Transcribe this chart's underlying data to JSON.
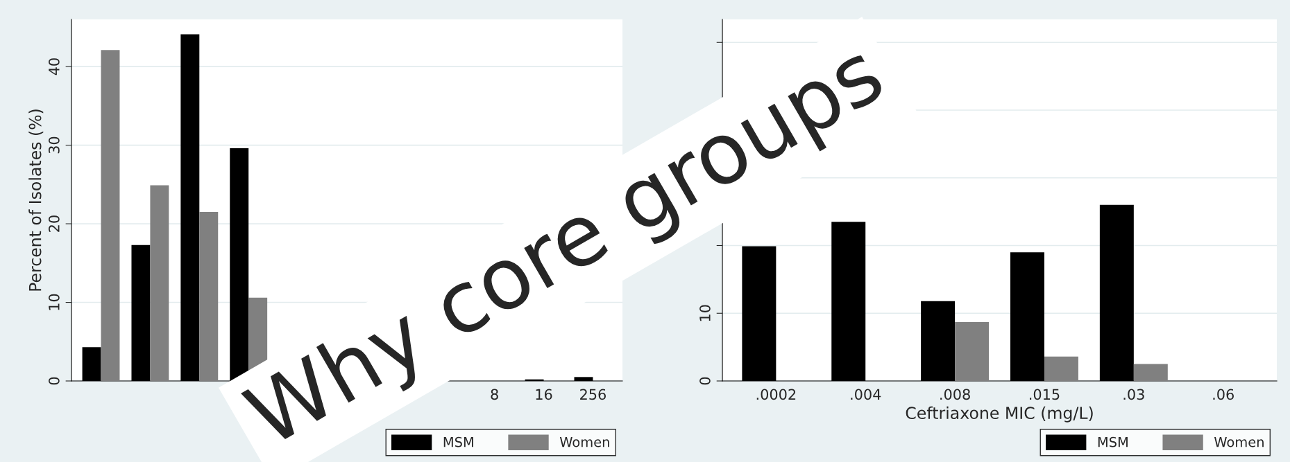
{
  "chart_data": [
    {
      "type": "bar",
      "ylabel": "Percent of Isolates (%)",
      "categories": [
        null,
        null,
        null,
        null,
        null,
        null,
        null,
        null,
        "8",
        "16",
        "256"
      ],
      "series": [
        {
          "name": "MSM",
          "color": "#000000",
          "values": [
            4.3,
            17.3,
            44.1,
            29.6,
            null,
            null,
            null,
            null,
            null,
            0.2,
            0.5
          ]
        },
        {
          "name": "Women",
          "color": "#808080",
          "values": [
            42.1,
            24.9,
            21.5,
            10.6,
            null,
            null,
            null,
            null,
            null,
            0,
            0
          ]
        }
      ],
      "ylim": [
        0,
        46
      ],
      "yticks": [
        0,
        10,
        20,
        30,
        40
      ],
      "grid": "y",
      "legend": "bottom right",
      "annotations": [
        "Why core groups"
      ]
    },
    {
      "type": "bar",
      "xlabel": "Ceftriaxone MIC (mg/L)",
      "categories": [
        ".0002",
        ".004",
        ".008",
        ".015",
        ".03",
        ".06"
      ],
      "series": [
        {
          "name": "MSM",
          "color": "#000000",
          "values": [
            19.9,
            23.5,
            11.8,
            19.0,
            26.0,
            0
          ]
        },
        {
          "name": "Women",
          "color": "#808080",
          "values": [
            null,
            null,
            8.7,
            3.6,
            2.5,
            0
          ]
        }
      ],
      "ylim": [
        0,
        53.4
      ],
      "yticks": [
        0,
        10,
        {
          "value": 20,
          "label": null
        },
        {
          "value": 30,
          "label": null
        },
        {
          "value": 40,
          "label": null
        },
        {
          "value": 50,
          "label": null
        }
      ],
      "grid": "y",
      "legend": "bottom right"
    }
  ]
}
